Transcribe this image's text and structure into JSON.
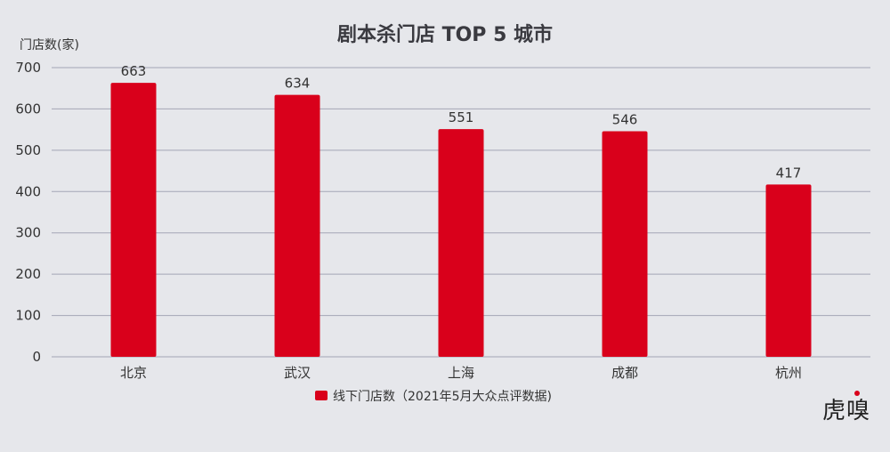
{
  "chart_data": {
    "type": "bar",
    "title": "剧本杀门店 TOP 5 城市",
    "ylabel": "门店数(家)",
    "xlabel": "",
    "categories": [
      "北京",
      "武汉",
      "上海",
      "成都",
      "杭州"
    ],
    "series": [
      {
        "name": "线下门店数（2021年5月大众点评数据)",
        "values": [
          663,
          634,
          551,
          546,
          417
        ],
        "color": "#d9001b"
      }
    ],
    "ylim": [
      0,
      700
    ],
    "yticks": [
      0,
      100,
      200,
      300,
      400,
      500,
      600,
      700
    ],
    "grid": true,
    "legend_position": "bottom",
    "data_labels": true
  },
  "logo_text": "虎嗅"
}
